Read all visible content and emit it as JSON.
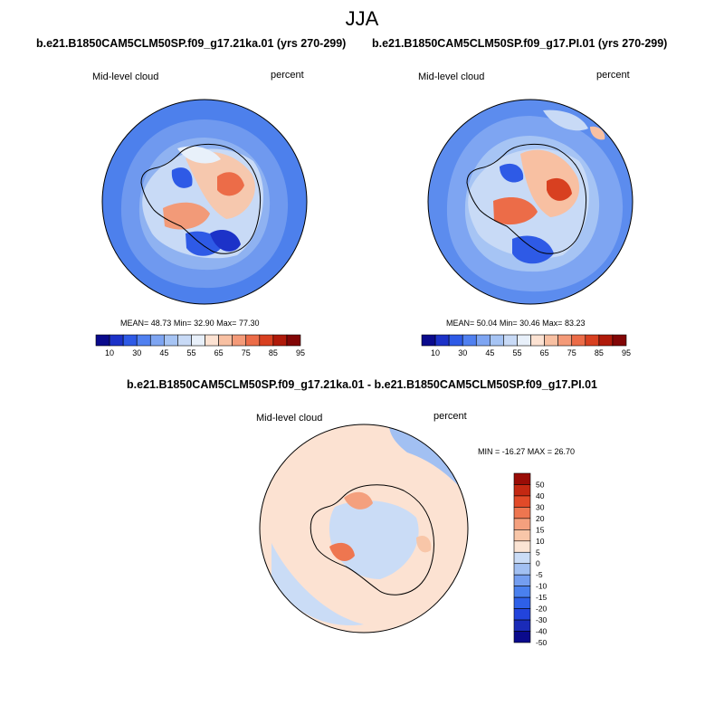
{
  "main_title": "JJA",
  "colors": {
    "abs_palette": [
      "#0a0a8c",
      "#1c32c8",
      "#2e5ae6",
      "#5080f0",
      "#7ea5f2",
      "#a6c4f4",
      "#c8daf6",
      "#e8f0fa",
      "#fce2d2",
      "#f8c0a2",
      "#f49a78",
      "#ec6c48",
      "#d84020",
      "#b01a0a",
      "#820606"
    ],
    "diff_palette": [
      "#0a0a8c",
      "#1a2bb8",
      "#2244dc",
      "#2e60e8",
      "#4a80ee",
      "#749ef0",
      "#a2c0f2",
      "#cadcf6",
      "#fbe4d4",
      "#f8c6a8",
      "#f4a07e",
      "#ee7650",
      "#e24a28",
      "#c42812",
      "#9a0c06"
    ]
  },
  "chart_data": [
    {
      "type": "heatmap",
      "id": "panel-ka",
      "title": "b.e21.B1850CAM5CLM50SP.f09_g17.21ka.01 (yrs 270-299)",
      "left_label": "Mid-level cloud",
      "right_label": "percent",
      "mean_label": "MEAN=",
      "mean": "48.73",
      "min_label": "Min=",
      "min": "32.90",
      "max_label": "Max=",
      "max": "77.30",
      "colorbar_ticks": [
        "10",
        "30",
        "45",
        "55",
        "65",
        "75",
        "85",
        "95"
      ]
    },
    {
      "type": "heatmap",
      "id": "panel-pi",
      "title": "b.e21.B1850CAM5CLM50SP.f09_g17.PI.01 (yrs 270-299)",
      "left_label": "Mid-level cloud",
      "right_label": "percent",
      "mean_label": "MEAN=",
      "mean": "50.04",
      "min_label": "Min=",
      "min": "30.46",
      "max_label": "Max=",
      "max": "83.23",
      "colorbar_ticks": [
        "10",
        "30",
        "45",
        "55",
        "65",
        "75",
        "85",
        "95"
      ]
    },
    {
      "type": "heatmap",
      "id": "panel-diff",
      "title": "b.e21.B1850CAM5CLM50SP.f09_g17.21ka.01 - b.e21.B1850CAM5CLM50SP.f09_g17.PI.01",
      "left_label": "Mid-level cloud",
      "right_label": "percent",
      "minmax_text": "MIN = -16.27 MAX =  26.70",
      "colorbar_ticks": [
        "50",
        "40",
        "30",
        "20",
        "15",
        "10",
        "5",
        "0",
        "-5",
        "-10",
        "-15",
        "-20",
        "-30",
        "-40",
        "-50"
      ]
    }
  ]
}
